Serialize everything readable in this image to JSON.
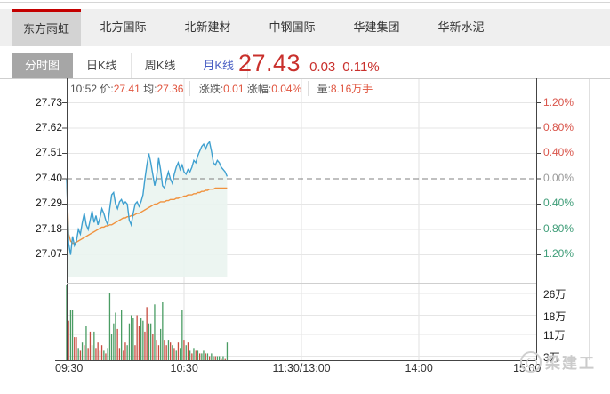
{
  "colors": {
    "accent_red": "#c40000",
    "quote_red": "#c9302c",
    "value_red": "#e0543e",
    "line_blue": "#3fa0d0",
    "line_orange": "#f0923e",
    "fill_mint": "#eaf4ef",
    "vol_green": "#4a9c63",
    "vol_red": "#c74b3f",
    "pct_red": "#d9544a",
    "pct_green": "#3f9d78",
    "ktab_blue": "#4a5fc4"
  },
  "tabs": {
    "items": [
      {
        "label": "东方雨虹",
        "active": true
      },
      {
        "label": "北方国际",
        "active": false
      },
      {
        "label": "北新建材",
        "active": false
      },
      {
        "label": "中钢国际",
        "active": false
      },
      {
        "label": "华建集团",
        "active": false
      },
      {
        "label": "华新水泥",
        "active": false
      }
    ]
  },
  "period_tabs": {
    "items": [
      {
        "label": "分时图",
        "active": true,
        "blue": false
      },
      {
        "label": "日K线",
        "active": false,
        "blue": false
      },
      {
        "label": "周K线",
        "active": false,
        "blue": false
      },
      {
        "label": "月K线",
        "active": false,
        "blue": true
      }
    ]
  },
  "quote": {
    "price": "27.43",
    "change": "0.03",
    "change_pct": "0.11%"
  },
  "info": {
    "time": "10:52",
    "price_label": "价:",
    "price": "27.41",
    "avg_label": "均:",
    "avg": "27.36",
    "chg_label": "涨跌:",
    "chg": "0.01",
    "pct_label": "涨幅:",
    "pct": "0.04%",
    "vol_label": "量:",
    "vol": "8.16万手"
  },
  "watermark": {
    "text": "梁建工"
  },
  "chart_data": {
    "type": "line",
    "title": "分时图 intraday price chart",
    "prev_close": 27.4,
    "day_high": 27.56,
    "day_low": 27.07,
    "last_price": 27.41,
    "session_minutes": 240,
    "elapsed_minutes": 82,
    "x_ticks": [
      "09:30",
      "10:30",
      "11:30/13:00",
      "14:00",
      "15:00"
    ],
    "left_ticks": [
      27.73,
      27.62,
      27.51,
      27.4,
      27.29,
      27.18,
      27.07
    ],
    "right_ticks": [
      "1.20%",
      "0.80%",
      "0.40%",
      "0.00%",
      "0.40%",
      "0.80%",
      "1.20%"
    ],
    "volume_ticks": [
      "26万",
      "18万",
      "11万",
      "3万"
    ],
    "volume_tick_values": [
      26,
      18,
      11,
      3
    ],
    "series": [
      {
        "name": "price",
        "values": [
          27.4,
          27.12,
          27.07,
          27.15,
          27.11,
          27.13,
          27.18,
          27.16,
          27.21,
          27.25,
          27.2,
          27.18,
          27.22,
          27.26,
          27.21,
          27.24,
          27.2,
          27.23,
          27.27,
          27.25,
          27.22,
          27.2,
          27.27,
          27.33,
          27.34,
          27.29,
          27.27,
          27.3,
          27.31,
          27.29,
          27.3,
          27.29,
          27.22,
          27.2,
          27.25,
          27.29,
          27.3,
          27.28,
          27.3,
          27.33,
          27.4,
          27.46,
          27.51,
          27.47,
          27.42,
          27.37,
          27.41,
          27.49,
          27.44,
          27.37,
          27.36,
          27.4,
          27.43,
          27.4,
          27.38,
          27.42,
          27.45,
          27.47,
          27.44,
          27.46,
          27.43,
          27.42,
          27.44,
          27.43,
          27.45,
          27.48,
          27.47,
          27.5,
          27.52,
          27.54,
          27.55,
          27.53,
          27.55,
          27.56,
          27.52,
          27.47,
          27.46,
          27.48,
          27.47,
          27.45,
          27.44,
          27.43,
          27.41
        ]
      },
      {
        "name": "avg",
        "values": [
          27.4,
          27.16,
          27.13,
          27.12,
          27.12,
          27.125,
          27.13,
          27.135,
          27.14,
          27.145,
          27.15,
          27.155,
          27.16,
          27.165,
          27.17,
          27.175,
          27.18,
          27.185,
          27.19,
          27.19,
          27.195,
          27.195,
          27.2,
          27.2,
          27.205,
          27.21,
          27.215,
          27.22,
          27.225,
          27.23,
          27.23,
          27.235,
          27.235,
          27.24,
          27.24,
          27.245,
          27.25,
          27.25,
          27.255,
          27.26,
          27.265,
          27.27,
          27.275,
          27.28,
          27.285,
          27.29,
          27.29,
          27.295,
          27.3,
          27.3,
          27.3,
          27.305,
          27.305,
          27.31,
          27.31,
          27.31,
          27.315,
          27.315,
          27.32,
          27.32,
          27.325,
          27.325,
          27.33,
          27.33,
          27.33,
          27.335,
          27.335,
          27.34,
          27.34,
          27.345,
          27.345,
          27.35,
          27.35,
          27.355,
          27.355,
          27.355,
          27.36,
          27.36,
          27.36,
          27.36,
          27.36,
          27.36,
          27.36
        ]
      },
      {
        "name": "volume_wan",
        "values": [
          29,
          16,
          20,
          20,
          10,
          10,
          6,
          5,
          8,
          7,
          14,
          6,
          12,
          7,
          12,
          6,
          8,
          5,
          7,
          5,
          4,
          6,
          26,
          11,
          15,
          19,
          13,
          6,
          20,
          5,
          8,
          7,
          15,
          18,
          17,
          7,
          18,
          14,
          17,
          16,
          12,
          21,
          15,
          15,
          11,
          22,
          9,
          7,
          13,
          23,
          9,
          7,
          9,
          8,
          7,
          6,
          5,
          8,
          6,
          20,
          9,
          7,
          8,
          5,
          4,
          6,
          5,
          5,
          4,
          4,
          5,
          4,
          4,
          3,
          4,
          3,
          3,
          3,
          3,
          2,
          3,
          2,
          8
        ]
      },
      {
        "name": "volume_dir",
        "values": [
          "g",
          "r",
          "g",
          "g",
          "r",
          "r",
          "g",
          "r",
          "g",
          "r",
          "g",
          "r",
          "r",
          "g",
          "g",
          "r",
          "r",
          "g",
          "r",
          "g",
          "r",
          "g",
          "g",
          "g",
          "g",
          "g",
          "r",
          "r",
          "g",
          "r",
          "r",
          "g",
          "g",
          "g",
          "g",
          "r",
          "r",
          "r",
          "g",
          "g",
          "r",
          "r",
          "g",
          "g",
          "r",
          "g",
          "r",
          "r",
          "g",
          "g",
          "r",
          "r",
          "g",
          "r",
          "g",
          "r",
          "g",
          "r",
          "g",
          "g",
          "r",
          "g",
          "r",
          "g",
          "r",
          "g",
          "r",
          "g",
          "r",
          "g",
          "g",
          "r",
          "g",
          "r",
          "g",
          "g",
          "r",
          "g",
          "g",
          "r",
          "g",
          "r",
          "g"
        ]
      }
    ]
  }
}
